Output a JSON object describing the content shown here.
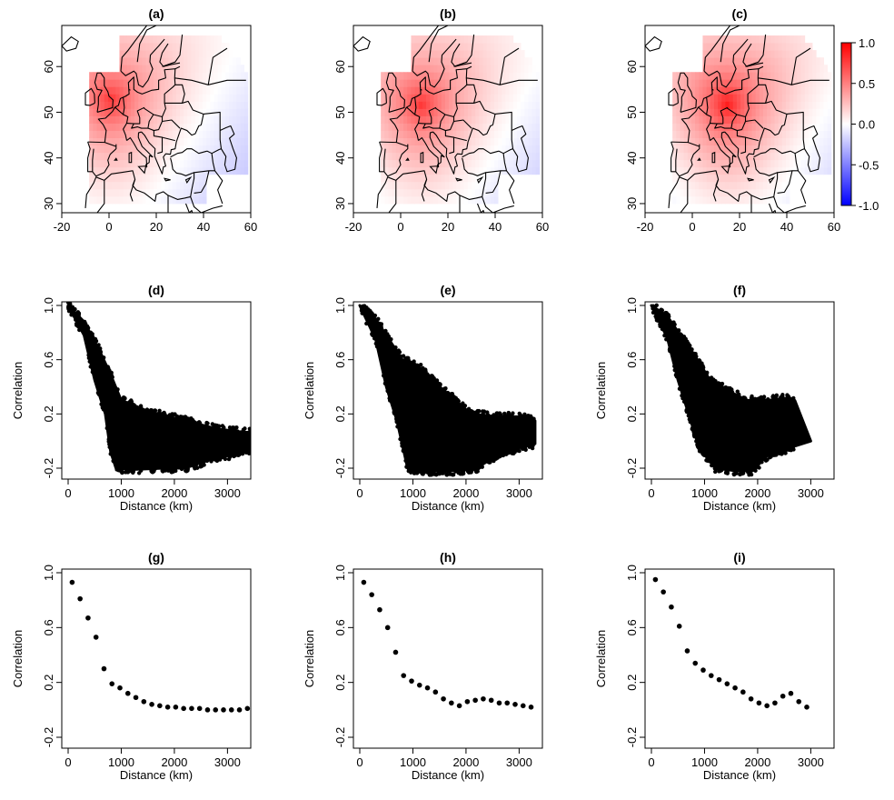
{
  "chart_data": [
    {
      "panel": "(a)",
      "type": "heatmap",
      "title": "(a)",
      "xlabel": "",
      "ylabel": "",
      "xlim": [
        -20,
        60
      ],
      "ylim": [
        28,
        69
      ],
      "xticks": [
        "-20",
        "0",
        "20",
        "40",
        "60"
      ],
      "yticks": [
        "30",
        "40",
        "50",
        "60"
      ],
      "hotspot": {
        "lon": 0,
        "lat": 52
      },
      "description_values": {
        "max_corr": 0.8,
        "min_corr": -0.2
      }
    },
    {
      "panel": "(b)",
      "type": "heatmap",
      "title": "(b)",
      "xlabel": "",
      "ylabel": "",
      "xlim": [
        -20,
        60
      ],
      "ylim": [
        28,
        69
      ],
      "xticks": [
        "-20",
        "0",
        "20",
        "40",
        "60"
      ],
      "yticks": [
        "30",
        "40",
        "50",
        "60"
      ],
      "hotspot": {
        "lon": 8,
        "lat": 51
      },
      "description_values": {
        "max_corr": 0.8,
        "min_corr": -0.3
      }
    },
    {
      "panel": "(c)",
      "type": "heatmap",
      "title": "(c)",
      "xlabel": "",
      "ylabel": "",
      "xlim": [
        -20,
        60
      ],
      "ylim": [
        28,
        69
      ],
      "xticks": [
        "-20",
        "0",
        "20",
        "40",
        "60"
      ],
      "yticks": [
        "30",
        "40",
        "50",
        "60"
      ],
      "hotspot": {
        "lon": 14,
        "lat": 51
      },
      "description_values": {
        "max_corr": 0.9,
        "min_corr": -0.4
      },
      "colorbar": {
        "min": -1.0,
        "max": 1.0,
        "ticks": [
          "1.0",
          "0.5",
          "0.0",
          "-0.5",
          "-1.0"
        ],
        "low_color": "#0000ff",
        "mid_color": "#ffffff",
        "high_color": "#ff0000"
      }
    },
    {
      "panel": "(d)",
      "type": "scatter",
      "title": "(d)",
      "xlabel": "Distance (km)",
      "ylabel": "Correlation",
      "xlim": [
        0,
        3500
      ],
      "ylim": [
        -0.22,
        1.02
      ],
      "xticks": [
        "0",
        "1000",
        "2000",
        "3000"
      ],
      "yticks": [
        "-0.2",
        "0.2",
        "0.6",
        "1.0"
      ],
      "cloud_upper": [
        [
          0,
          1.0
        ],
        [
          300,
          0.88
        ],
        [
          600,
          0.66
        ],
        [
          800,
          0.49
        ],
        [
          1000,
          0.3
        ],
        [
          1200,
          0.27
        ],
        [
          1500,
          0.22
        ],
        [
          1800,
          0.19
        ],
        [
          2200,
          0.15
        ],
        [
          2800,
          0.09
        ],
        [
          3200,
          0.07
        ],
        [
          3500,
          0.06
        ]
      ],
      "cloud_lower": [
        [
          0,
          1.0
        ],
        [
          300,
          0.78
        ],
        [
          500,
          0.45
        ],
        [
          700,
          0.2
        ],
        [
          800,
          -0.08
        ],
        [
          900,
          -0.2
        ],
        [
          1200,
          -0.21
        ],
        [
          1800,
          -0.2
        ],
        [
          2200,
          -0.2
        ],
        [
          2800,
          -0.12
        ],
        [
          3200,
          -0.1
        ],
        [
          3500,
          -0.05
        ]
      ]
    },
    {
      "panel": "(e)",
      "type": "scatter",
      "title": "(e)",
      "xlabel": "Distance (km)",
      "ylabel": "Correlation",
      "xlim": [
        0,
        3500
      ],
      "ylim": [
        -0.22,
        1.02
      ],
      "xticks": [
        "0",
        "1000",
        "2000",
        "3000"
      ],
      "yticks": [
        "-0.2",
        "0.2",
        "0.6",
        "1.0"
      ],
      "cloud_upper": [
        [
          0,
          1.0
        ],
        [
          300,
          0.9
        ],
        [
          600,
          0.72
        ],
        [
          800,
          0.6
        ],
        [
          1000,
          0.58
        ],
        [
          1200,
          0.52
        ],
        [
          1500,
          0.4
        ],
        [
          1800,
          0.3
        ],
        [
          2100,
          0.2
        ],
        [
          2600,
          0.18
        ],
        [
          3000,
          0.18
        ],
        [
          3300,
          0.15
        ]
      ],
      "cloud_lower": [
        [
          0,
          1.0
        ],
        [
          300,
          0.75
        ],
        [
          500,
          0.4
        ],
        [
          700,
          0.15
        ],
        [
          900,
          -0.2
        ],
        [
          1200,
          -0.22
        ],
        [
          1800,
          -0.22
        ],
        [
          2200,
          -0.2
        ],
        [
          2600,
          -0.1
        ],
        [
          3000,
          -0.05
        ],
        [
          3300,
          -0.02
        ]
      ]
    },
    {
      "panel": "(f)",
      "type": "scatter",
      "title": "(f)",
      "xlabel": "Distance (km)",
      "ylabel": "Correlation",
      "xlim": [
        0,
        3500
      ],
      "ylim": [
        -0.22,
        1.02
      ],
      "xticks": [
        "0",
        "1000",
        "2000",
        "3000"
      ],
      "yticks": [
        "-0.2",
        "0.2",
        "0.6",
        "1.0"
      ],
      "cloud_upper": [
        [
          0,
          1.0
        ],
        [
          300,
          0.92
        ],
        [
          600,
          0.75
        ],
        [
          900,
          0.58
        ],
        [
          1100,
          0.45
        ],
        [
          1400,
          0.38
        ],
        [
          1800,
          0.3
        ],
        [
          2200,
          0.3
        ],
        [
          2600,
          0.32
        ],
        [
          2700,
          0.3
        ]
      ],
      "cloud_lower": [
        [
          0,
          1.0
        ],
        [
          300,
          0.76
        ],
        [
          500,
          0.45
        ],
        [
          700,
          0.2
        ],
        [
          900,
          -0.05
        ],
        [
          1200,
          -0.2
        ],
        [
          1600,
          -0.22
        ],
        [
          1900,
          -0.22
        ],
        [
          2200,
          -0.1
        ],
        [
          2600,
          -0.05
        ],
        [
          3000,
          0.0
        ]
      ]
    },
    {
      "panel": "(g)",
      "type": "scatter",
      "title": "(g)",
      "xlabel": "Distance (km)",
      "ylabel": "Correlation",
      "xlim": [
        0,
        3500
      ],
      "ylim": [
        -0.22,
        1.02
      ],
      "xticks": [
        "0",
        "1000",
        "2000",
        "3000"
      ],
      "yticks": [
        "-0.2",
        "0.2",
        "0.6",
        "1.0"
      ],
      "x": [
        75,
        225,
        375,
        525,
        675,
        825,
        975,
        1125,
        1275,
        1425,
        1575,
        1725,
        1875,
        2025,
        2175,
        2325,
        2475,
        2625,
        2775,
        2925,
        3075,
        3225,
        3375
      ],
      "y": [
        0.93,
        0.81,
        0.67,
        0.53,
        0.3,
        0.19,
        0.16,
        0.12,
        0.09,
        0.06,
        0.04,
        0.03,
        0.02,
        0.02,
        0.01,
        0.01,
        0.01,
        0.0,
        0.0,
        0.0,
        0.0,
        0.0,
        0.01
      ]
    },
    {
      "panel": "(h)",
      "type": "scatter",
      "title": "(h)",
      "xlabel": "Distance (km)",
      "ylabel": "Correlation",
      "xlim": [
        0,
        3500
      ],
      "ylim": [
        -0.22,
        1.02
      ],
      "xticks": [
        "0",
        "1000",
        "2000",
        "3000"
      ],
      "yticks": [
        "-0.2",
        "0.2",
        "0.6",
        "1.0"
      ],
      "x": [
        75,
        225,
        375,
        525,
        675,
        825,
        975,
        1125,
        1275,
        1425,
        1575,
        1725,
        1875,
        2025,
        2175,
        2325,
        2475,
        2625,
        2775,
        2925,
        3075,
        3225
      ],
      "y": [
        0.93,
        0.84,
        0.73,
        0.6,
        0.42,
        0.25,
        0.21,
        0.18,
        0.16,
        0.13,
        0.08,
        0.05,
        0.03,
        0.06,
        0.07,
        0.08,
        0.07,
        0.05,
        0.05,
        0.04,
        0.03,
        0.02
      ]
    },
    {
      "panel": "(i)",
      "type": "scatter",
      "title": "(i)",
      "xlabel": "Distance (km)",
      "ylabel": "Correlation",
      "xlim": [
        0,
        3500
      ],
      "ylim": [
        -0.22,
        1.02
      ],
      "xticks": [
        "0",
        "1000",
        "2000",
        "3000"
      ],
      "yticks": [
        "-0.2",
        "0.2",
        "0.6",
        "1.0"
      ],
      "x": [
        75,
        225,
        375,
        525,
        675,
        825,
        975,
        1125,
        1275,
        1425,
        1575,
        1725,
        1875,
        2025,
        2175,
        2325,
        2475,
        2625,
        2775,
        2925
      ],
      "y": [
        0.95,
        0.86,
        0.75,
        0.61,
        0.43,
        0.34,
        0.29,
        0.25,
        0.22,
        0.19,
        0.16,
        0.13,
        0.08,
        0.05,
        0.03,
        0.05,
        0.1,
        0.12,
        0.06,
        0.02
      ]
    }
  ]
}
